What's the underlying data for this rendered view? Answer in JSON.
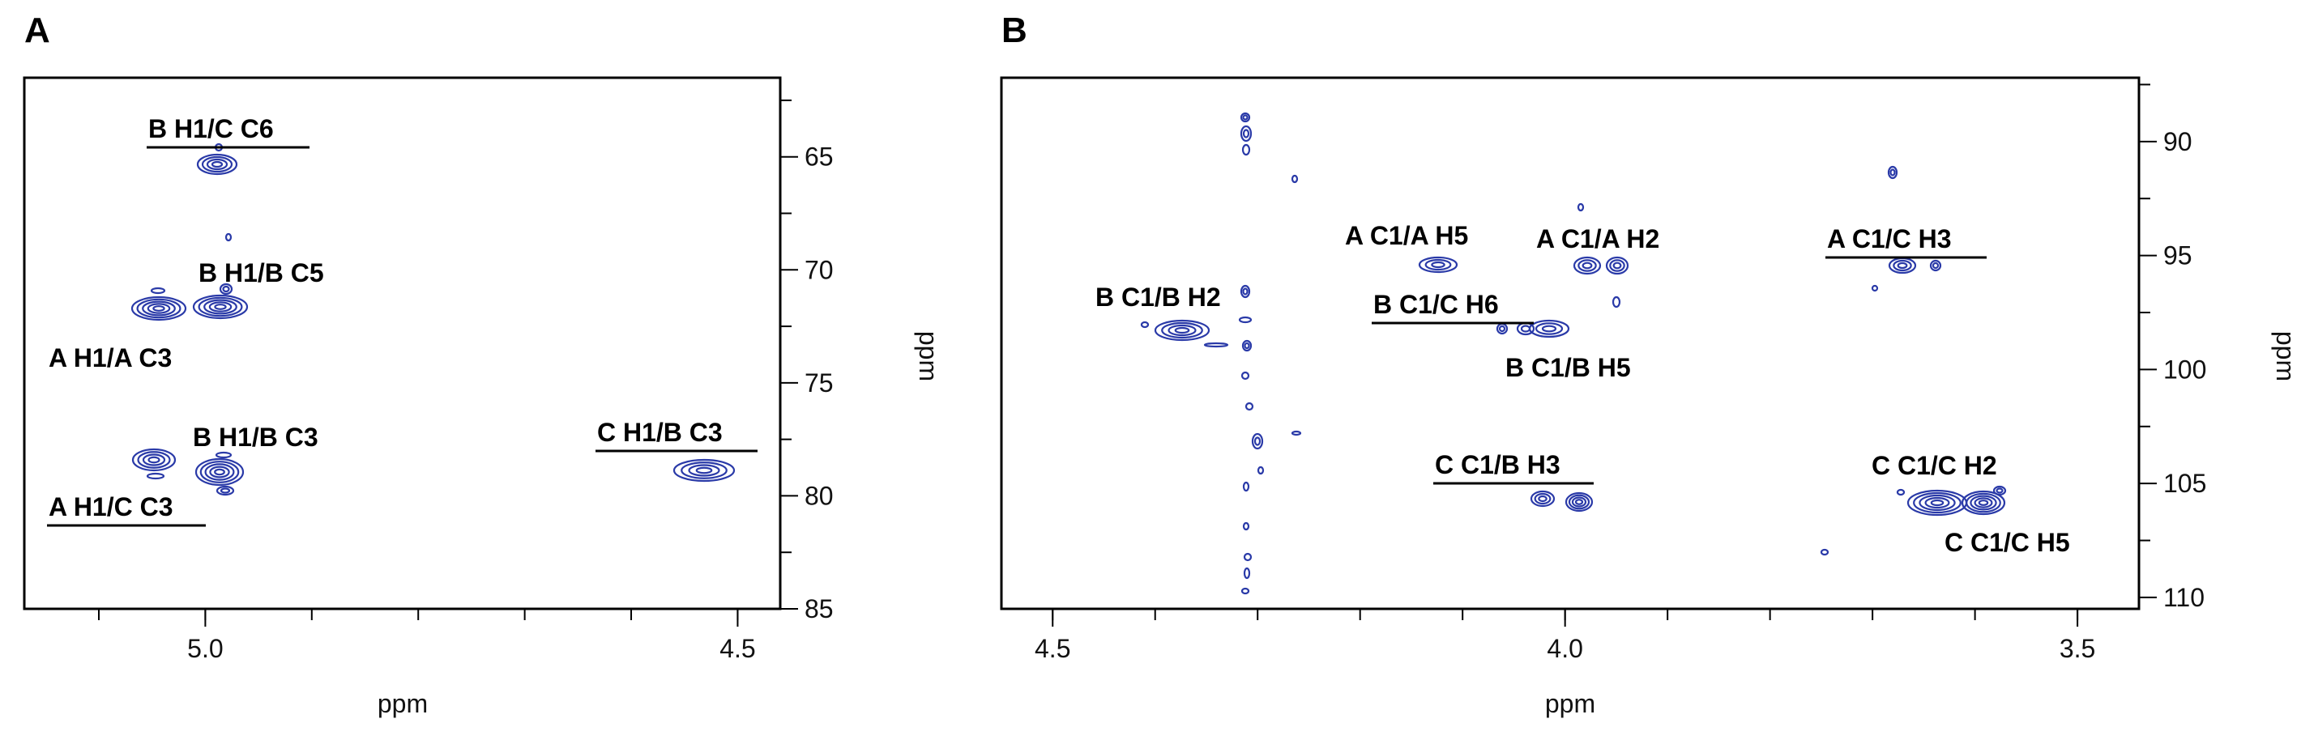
{
  "chart_data": [
    {
      "type": "scatter",
      "panel": "A",
      "xlabel": "ppm",
      "ylabel": "ppm",
      "x_tick_labels": [
        {
          "v": 5.0,
          "t": "5.0"
        },
        {
          "v": 4.5,
          "t": "4.5"
        }
      ],
      "y_tick_labels": [
        {
          "v": 65,
          "t": "65"
        },
        {
          "v": 70,
          "t": "70"
        },
        {
          "v": 75,
          "t": "75"
        },
        {
          "v": 80,
          "t": "80"
        },
        {
          "v": 85,
          "t": "85"
        }
      ],
      "labels": [
        {
          "text": "B H1/C C6",
          "underlined": true
        },
        {
          "text": "B H1/B C5",
          "underlined": false
        },
        {
          "text": "A H1/A C3",
          "underlined": false
        },
        {
          "text": "B H1/B C3",
          "underlined": false
        },
        {
          "text": "A H1/C C3",
          "underlined": true
        },
        {
          "text": "C H1/B C3",
          "underlined": true
        }
      ]
    },
    {
      "type": "scatter",
      "panel": "B",
      "xlabel": "ppm",
      "ylabel": "ppm",
      "x_tick_labels": [
        {
          "v": 4.5,
          "t": "4.5"
        },
        {
          "v": 4.0,
          "t": "4.0"
        },
        {
          "v": 3.5,
          "t": "3.5"
        }
      ],
      "y_tick_labels": [
        {
          "v": 90,
          "t": "90"
        },
        {
          "v": 95,
          "t": "95"
        },
        {
          "v": 100,
          "t": "100"
        },
        {
          "v": 105,
          "t": "105"
        },
        {
          "v": 110,
          "t": "110"
        }
      ],
      "labels": [
        {
          "text": "A C1/A H5",
          "underlined": false
        },
        {
          "text": "A C1/A H2",
          "underlined": false
        },
        {
          "text": "A C1/C H3",
          "underlined": true
        },
        {
          "text": "B C1/B H2",
          "underlined": false
        },
        {
          "text": "B C1/C H6",
          "underlined": true
        },
        {
          "text": "B C1/B H5",
          "underlined": false
        },
        {
          "text": "C C1/B H3",
          "underlined": true
        },
        {
          "text": "C C1/C H2",
          "underlined": false
        },
        {
          "text": "C C1/C H5",
          "underlined": false
        }
      ]
    }
  ]
}
